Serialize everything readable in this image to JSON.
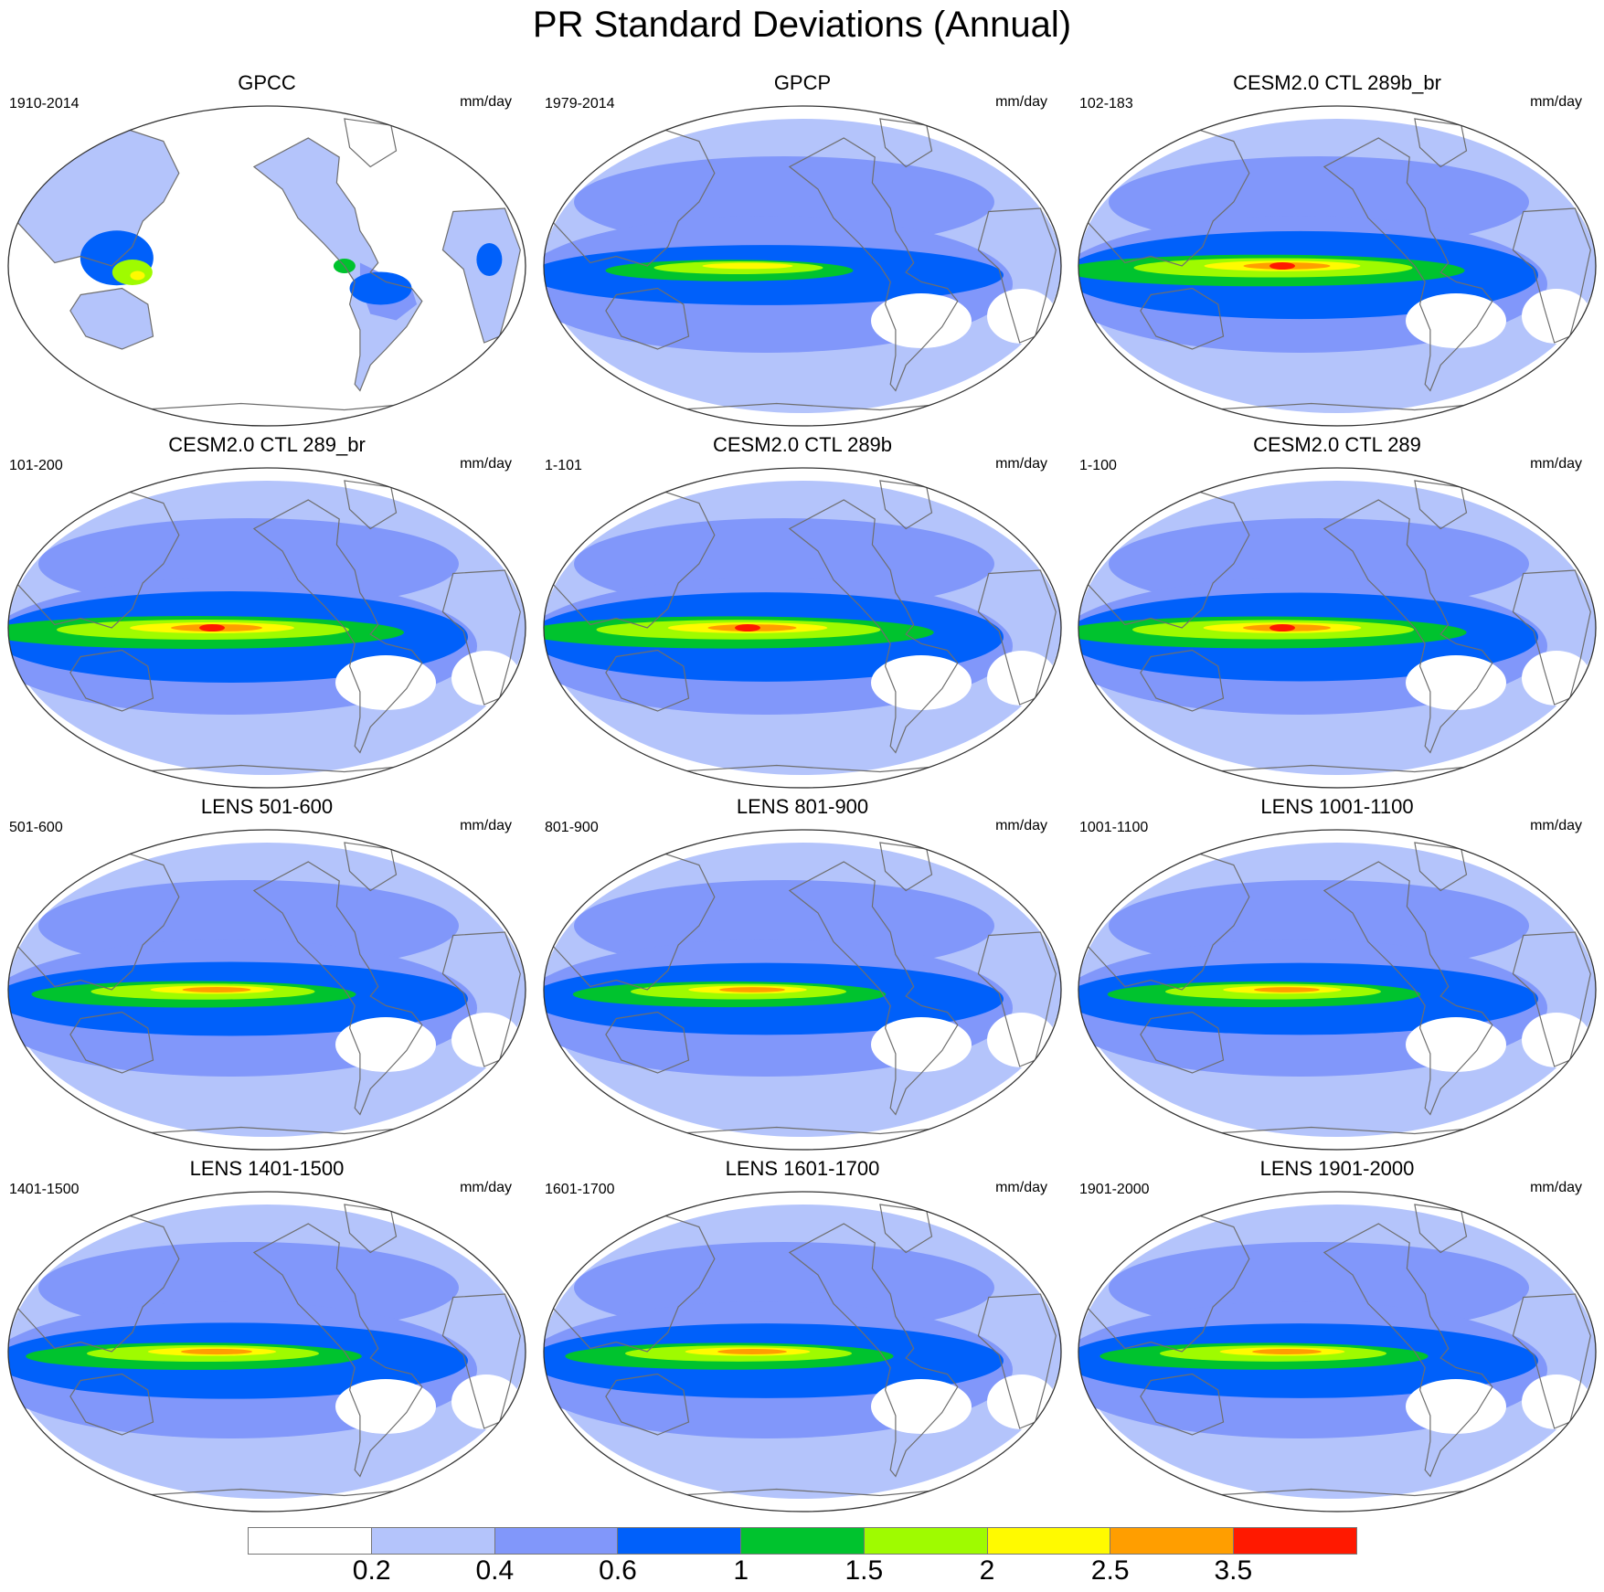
{
  "title": "PR Standard Deviations (Annual)",
  "units": "mm/day",
  "panels": [
    {
      "title": "GPCC",
      "period": "1910-2014",
      "intensity": 0.0
    },
    {
      "title": "GPCP",
      "period": "1979-2014",
      "intensity": 0.55
    },
    {
      "title": "CESM2.0 CTL 289b_br",
      "period": "102-183",
      "intensity": 0.95
    },
    {
      "title": "CESM2.0 CTL 289_br",
      "period": "101-200",
      "intensity": 1.0
    },
    {
      "title": "CESM2.0 CTL 289b",
      "period": "1-101",
      "intensity": 0.97
    },
    {
      "title": "CESM2.0 CTL 289",
      "period": "1-100",
      "intensity": 0.96
    },
    {
      "title": "LENS 501-600",
      "period": "501-600",
      "intensity": 0.75
    },
    {
      "title": "LENS 801-900",
      "period": "801-900",
      "intensity": 0.72
    },
    {
      "title": "LENS 1001-1100",
      "period": "1001-1100",
      "intensity": 0.72
    },
    {
      "title": "LENS 1401-1500",
      "period": "1401-1500",
      "intensity": 0.78
    },
    {
      "title": "LENS 1601-1700",
      "period": "1601-1700",
      "intensity": 0.76
    },
    {
      "title": "LENS 1901-2000",
      "period": "1901-2000",
      "intensity": 0.76
    }
  ],
  "colorbar": {
    "colors": [
      "#ffffff",
      "#b4c4fb",
      "#8197fa",
      "#0060fa",
      "#00c32e",
      "#9ffb00",
      "#fffa00",
      "#ff9e00",
      "#ff1900"
    ],
    "labels": [
      "0.2",
      "0.4",
      "0.6",
      "1",
      "1.5",
      "2",
      "2.5",
      "3.5"
    ]
  }
}
